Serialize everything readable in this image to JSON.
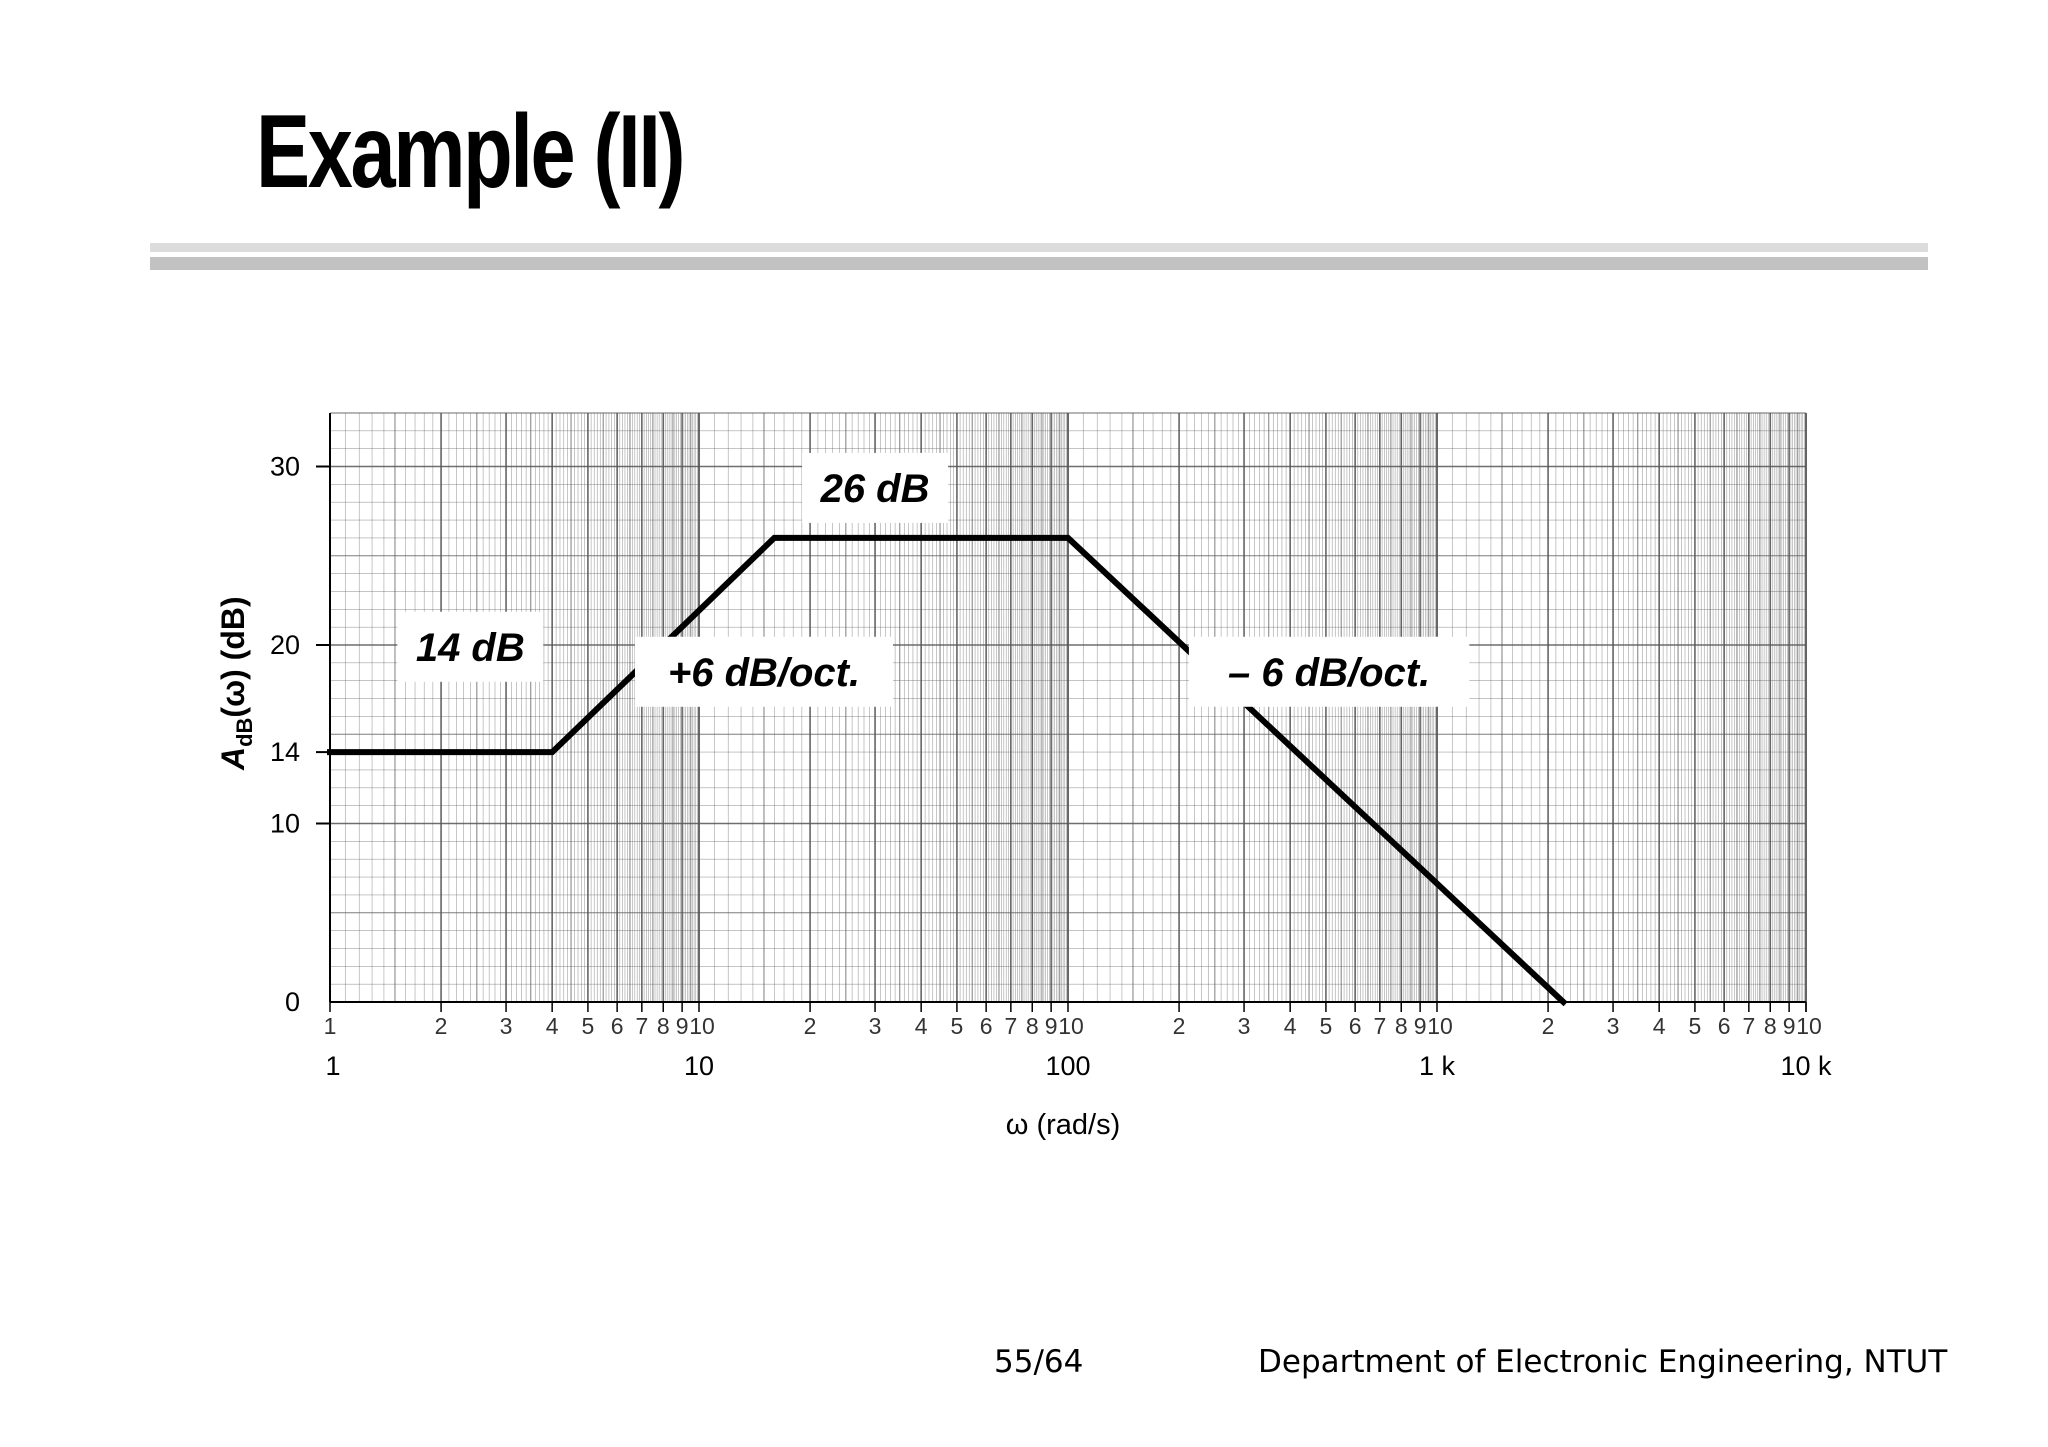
{
  "slide": {
    "title": "Example (II)",
    "page_number": "55/64",
    "footer": "Department of Electronic Engineering, NTUT"
  },
  "chart_data": {
    "type": "line",
    "x_scale": "log",
    "xlim": [
      1,
      10000
    ],
    "ylim": [
      0,
      30
    ],
    "grid": true,
    "xlabel": "ω (rad/s)",
    "ylabel": "A_dB(ω) (dB)",
    "ylabel_parts": {
      "main": "A",
      "sub": "dB",
      "rest": "(ω)  (dB)"
    },
    "y_ticks": [
      0,
      10,
      14,
      20,
      30
    ],
    "x_minor_tick_labels": [
      "1",
      "2",
      "3",
      "4",
      "5",
      "6",
      "7",
      "8",
      "9",
      "10"
    ],
    "x_decade_labels": [
      {
        "value": 1,
        "label": "1"
      },
      {
        "value": 10,
        "label": "10"
      },
      {
        "value": 100,
        "label": "100"
      },
      {
        "value": 1000,
        "label": "1 k"
      },
      {
        "value": 10000,
        "label": "10 k"
      }
    ],
    "series": [
      {
        "x": [
          1,
          4,
          16,
          100,
          2200
        ],
        "y": [
          14,
          14,
          26,
          26,
          0
        ]
      }
    ],
    "annotations": [
      {
        "text": "14 dB",
        "x": 2.4,
        "y": 19.9
      },
      {
        "text": "26 dB",
        "x": 30,
        "y": 28.8
      },
      {
        "text": "+6 dB/oct.",
        "x": 15,
        "y": 18.5
      },
      {
        "text": "– 6 dB/oct.",
        "x": 510,
        "y": 18.5
      }
    ],
    "line_color": "#000000",
    "grid_color": "#555555"
  }
}
